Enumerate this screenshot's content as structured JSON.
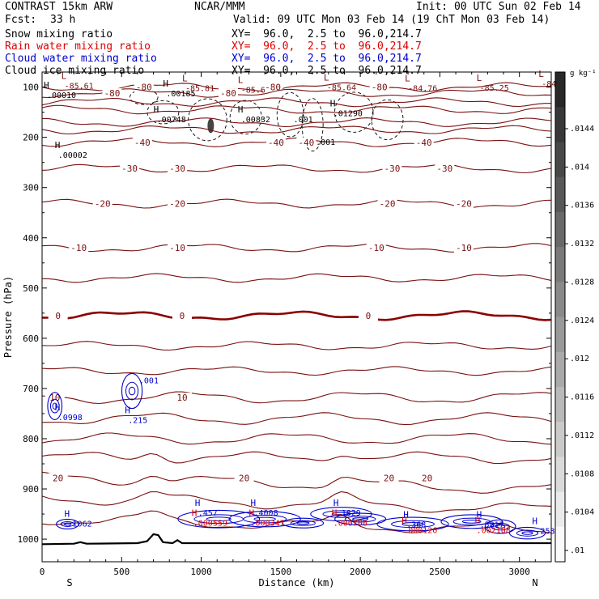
{
  "header": {
    "model": "CONTRAST 15km ARW",
    "org": "NCAR/MMM",
    "init": "Init: 00 UTC Sun 02 Feb 14",
    "fcst_label": "Fcst:",
    "fcst_value": "33 h",
    "valid": "Valid: 09 UTC Mon 03 Feb 14 (19 ChT Mon 03 Feb 14)"
  },
  "fields": [
    {
      "name": "Snow mixing ratio",
      "color": "#000000",
      "xy": "XY=  96.0,  2.5 to  96.0,214.7"
    },
    {
      "name": "Rain water mixing ratio",
      "color": "#dd0000",
      "xy": "XY=  96.0,  2.5 to  96.0,214.7"
    },
    {
      "name": "Cloud water mixing ratio",
      "color": "#0000cc",
      "xy": "XY=  96.0,  2.5 to  96.0,214.7"
    },
    {
      "name": "Cloud ice mixing ratio",
      "color": "#000000",
      "xy": "XY=  96.0,  2.5 to  96.0,214.7"
    }
  ],
  "colors": {
    "temperature": "#7a1010",
    "zero_isotherm": "#8b0000",
    "terrain": "#000000",
    "rain": "#dd0000",
    "cloud_water": "#0000cc",
    "snow": "#000000"
  },
  "chart_data": {
    "type": "cross-section",
    "xlabel": "Distance (km)",
    "ylabel": "Pressure (hPa)",
    "xlim": [
      0,
      3200
    ],
    "ylim": [
      1045,
      70
    ],
    "x_ticks": [
      0,
      500,
      1000,
      1500,
      2000,
      2500,
      3000
    ],
    "y_ticks": [
      100,
      200,
      300,
      400,
      500,
      600,
      700,
      800,
      900,
      1000
    ],
    "endpoint_labels": {
      "left": "S",
      "right": "N"
    },
    "colorbar": {
      "unit": "g kg⁻¹",
      "ticks": [
        ".0144",
        ".014",
        ".0136",
        ".0132",
        ".0128",
        ".0124",
        ".012",
        ".0116",
        ".0112",
        ".0108",
        ".0104",
        ".01"
      ]
    },
    "isotherms": [
      {
        "temp": -80,
        "p": 100,
        "labels": [
          {
            "x": 640,
            "t": "-80"
          },
          {
            "x": 1450,
            "t": "-80"
          },
          {
            "x": 2120,
            "t": "-80"
          }
        ]
      },
      {
        "temp": -80,
        "p": 112,
        "labels": [
          {
            "x": 440,
            "t": "-80"
          },
          {
            "x": 1170,
            "t": "-80"
          }
        ]
      },
      {
        "temp": -70,
        "p": 130,
        "labels": []
      },
      {
        "temp": -60,
        "p": 145,
        "labels": []
      },
      {
        "temp": -50,
        "p": 170,
        "labels": []
      },
      {
        "temp": -50,
        "p": 185,
        "labels": []
      },
      {
        "temp": -40,
        "p": 210,
        "labels": [
          {
            "x": 630,
            "t": "-40"
          },
          {
            "x": 1470,
            "t": "-40"
          },
          {
            "x": 1660,
            "t": "-40"
          },
          {
            "x": 2400,
            "t": "-40"
          }
        ]
      },
      {
        "temp": -30,
        "p": 262,
        "labels": [
          {
            "x": 550,
            "t": "-30"
          },
          {
            "x": 850,
            "t": "-30"
          },
          {
            "x": 2200,
            "t": "-30"
          },
          {
            "x": 2530,
            "t": "-30"
          }
        ]
      },
      {
        "temp": -20,
        "p": 332,
        "labels": [
          {
            "x": 380,
            "t": "-20"
          },
          {
            "x": 850,
            "t": "-20"
          },
          {
            "x": 2170,
            "t": "-20"
          },
          {
            "x": 2650,
            "t": "-20"
          }
        ]
      },
      {
        "temp": -10,
        "p": 420,
        "labels": [
          {
            "x": 230,
            "t": "-10"
          },
          {
            "x": 850,
            "t": "-10"
          },
          {
            "x": 2100,
            "t": "-10"
          },
          {
            "x": 2650,
            "t": "-10"
          }
        ]
      },
      {
        "temp": -5,
        "p": 480,
        "labels": []
      },
      {
        "temp": 0,
        "p": 555,
        "labels": [
          {
            "x": 100,
            "t": "0"
          },
          {
            "x": 880,
            "t": "0"
          },
          {
            "x": 2050,
            "t": "0"
          }
        ]
      },
      {
        "temp": 3,
        "p": 615,
        "labels": []
      },
      {
        "temp": 6,
        "p": 665,
        "labels": []
      },
      {
        "temp": 10,
        "p": 718,
        "labels": [
          {
            "x": 80,
            "t": "10"
          },
          {
            "x": 880,
            "t": "10"
          }
        ]
      },
      {
        "temp": 12,
        "p": 760,
        "labels": []
      },
      {
        "temp": 14,
        "p": 800,
        "labels": []
      },
      {
        "temp": 17,
        "p": 838,
        "labels": []
      },
      {
        "temp": 20,
        "p": 878,
        "labels": [
          {
            "x": 100,
            "t": "20"
          },
          {
            "x": 1270,
            "t": "20"
          },
          {
            "x": 2180,
            "t": "20"
          },
          {
            "x": 2420,
            "t": "20"
          }
        ]
      },
      {
        "temp": 22,
        "p": 918,
        "labels": []
      },
      {
        "temp": 24,
        "p": 960,
        "labels": []
      }
    ],
    "extrema": [
      {
        "type": "L",
        "label": "-85.61",
        "x": 120,
        "p": 100,
        "color": "temp"
      },
      {
        "type": "L",
        "label": "-85.81",
        "x": 880,
        "p": 105,
        "color": "temp"
      },
      {
        "type": "L",
        "label": "-85.6",
        "x": 1230,
        "p": 108,
        "color": "temp"
      },
      {
        "type": "L",
        "label": "-85.64",
        "x": 1770,
        "p": 103,
        "color": "temp"
      },
      {
        "type": "L",
        "label": "-84.76",
        "x": 2280,
        "p": 105,
        "color": "temp"
      },
      {
        "type": "L",
        "label": "-85.25",
        "x": 2730,
        "p": 104,
        "color": "temp"
      },
      {
        "type": "L",
        "label": "-84.",
        "x": 3120,
        "p": 96,
        "color": "temp"
      },
      {
        "type": "H",
        "label": ".00010",
        "x": 10,
        "p": 118,
        "color": "snow"
      },
      {
        "type": "H",
        "label": ".00185",
        "x": 760,
        "p": 115,
        "color": "snow"
      },
      {
        "type": "H",
        "label": ".00748",
        "x": 700,
        "p": 167,
        "color": "snow"
      },
      {
        "type": "H",
        "label": ".00832",
        "x": 1230,
        "p": 167,
        "color": "snow"
      },
      {
        "type": "H",
        "label": ".01290",
        "x": 1810,
        "p": 155,
        "color": "snow"
      },
      {
        "type": "H",
        "label": ".00002",
        "x": 80,
        "p": 238,
        "color": "snow"
      },
      {
        "type": "H",
        "label": ".0998",
        "x": 80,
        "p": 760,
        "color": "cloud"
      },
      {
        "type": "H",
        "label": ".215",
        "x": 520,
        "p": 765,
        "color": "cloud"
      },
      {
        "type": "H",
        "label": ".1062",
        "x": 140,
        "p": 972,
        "color": "cloud"
      },
      {
        "type": "H",
        "label": ".457",
        "x": 960,
        "p": 950,
        "color": "cloud"
      },
      {
        "type": "H",
        "label": ".4008",
        "x": 1310,
        "p": 950,
        "color": "cloud"
      },
      {
        "type": "H",
        "label": ".1829",
        "x": 1830,
        "p": 950,
        "color": "cloud"
      },
      {
        "type": "H",
        "label": ".368",
        "x": 2270,
        "p": 973,
        "color": "cloud"
      },
      {
        "type": "H",
        "label": ".5817",
        "x": 2730,
        "p": 973,
        "color": "cloud"
      },
      {
        "type": "H",
        "label": ".2534",
        "x": 3080,
        "p": 986,
        "color": "cloud"
      },
      {
        "type": "H",
        "label": ".000559",
        "x": 950,
        "p": 973,
        "color": "rain"
      },
      {
        "type": "H",
        "label": ".000347",
        "x": 1310,
        "p": 973,
        "color": "rain"
      },
      {
        "type": "H",
        "label": ".000700",
        "x": 1830,
        "p": 973,
        "color": "rain"
      },
      {
        "type": "H",
        "label": ".000126",
        "x": 2270,
        "p": 988,
        "color": "rain"
      },
      {
        "type": "H",
        "label": ".002108",
        "x": 2730,
        "p": 988,
        "color": "rain"
      }
    ],
    "contour_labels": [
      {
        "t": ".001",
        "x": 1580,
        "p": 170,
        "color": "snow"
      },
      {
        "t": ".001",
        "x": 1720,
        "p": 215,
        "color": "snow"
      },
      {
        "t": ".001",
        "x": 610,
        "p": 690,
        "color": "cloud"
      }
    ],
    "terrain": [
      [
        0,
        1010
      ],
      [
        200,
        1009
      ],
      [
        240,
        1006
      ],
      [
        280,
        1009
      ],
      [
        600,
        1008
      ],
      [
        660,
        1004
      ],
      [
        700,
        990
      ],
      [
        730,
        992
      ],
      [
        760,
        1006
      ],
      [
        820,
        1008
      ],
      [
        850,
        1002
      ],
      [
        880,
        1008
      ],
      [
        1400,
        1008
      ],
      [
        3200,
        1008
      ]
    ]
  }
}
